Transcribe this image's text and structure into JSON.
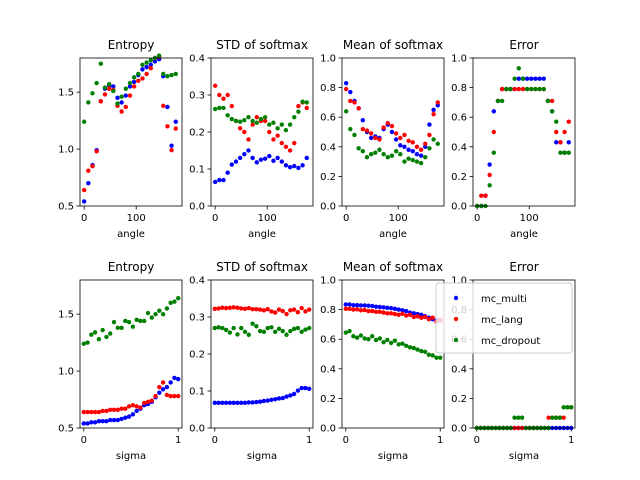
{
  "chart_data": [
    {
      "type": "scatter",
      "title": "Entropy",
      "xlabel": "angle",
      "ylabel": "",
      "xlim": [
        -8,
        188
      ],
      "ylim": [
        0.5,
        1.8
      ],
      "xticks": [
        0,
        100
      ],
      "yticks": [
        0.5,
        1.0,
        1.5
      ],
      "x": [
        0,
        8,
        16,
        24,
        32,
        40,
        48,
        56,
        64,
        72,
        80,
        88,
        96,
        104,
        112,
        120,
        128,
        136,
        144,
        152,
        160,
        168,
        176
      ],
      "series": [
        {
          "name": "mc_multi",
          "color": "#0000ff",
          "values": [
            0.54,
            0.7,
            0.86,
            0.99,
            1.42,
            1.53,
            1.56,
            1.55,
            1.45,
            1.41,
            1.47,
            1.55,
            1.59,
            1.65,
            1.7,
            1.72,
            1.74,
            1.77,
            1.79,
            1.64,
            1.37,
            1.03,
            1.24
          ]
        },
        {
          "name": "mc_lang",
          "color": "#ff0000",
          "values": [
            0.64,
            0.81,
            0.85,
            0.98,
            1.42,
            1.48,
            1.53,
            1.52,
            1.38,
            1.33,
            1.37,
            1.47,
            1.55,
            1.6,
            1.62,
            1.66,
            1.71,
            1.8,
            1.81,
            1.38,
            1.2,
            0.99,
            1.18
          ]
        },
        {
          "name": "mc_dropout",
          "color": "#008000",
          "values": [
            1.24,
            1.41,
            1.49,
            1.58,
            1.75,
            1.54,
            1.57,
            1.51,
            1.4,
            1.46,
            1.53,
            1.58,
            1.63,
            1.66,
            1.74,
            1.76,
            1.78,
            1.8,
            1.82,
            1.66,
            1.64,
            1.65,
            1.66
          ]
        }
      ]
    },
    {
      "type": "scatter",
      "title": "STD of softmax",
      "xlabel": "angle",
      "ylabel": "",
      "xlim": [
        -8,
        188
      ],
      "ylim": [
        0.0,
        0.4
      ],
      "xticks": [
        0,
        100
      ],
      "yticks": [
        0.0,
        0.1,
        0.2,
        0.3,
        0.4
      ],
      "x": [
        0,
        8,
        16,
        24,
        32,
        40,
        48,
        56,
        64,
        72,
        80,
        88,
        96,
        104,
        112,
        120,
        128,
        136,
        144,
        152,
        160,
        168,
        176
      ],
      "series": [
        {
          "name": "mc_multi",
          "color": "#0000ff",
          "values": [
            0.065,
            0.07,
            0.07,
            0.09,
            0.112,
            0.12,
            0.13,
            0.14,
            0.15,
            0.13,
            0.118,
            0.125,
            0.128,
            0.135,
            0.122,
            0.13,
            0.12,
            0.11,
            0.105,
            0.108,
            0.103,
            0.11,
            0.13
          ]
        },
        {
          "name": "mc_lang",
          "color": "#ff0000",
          "values": [
            0.325,
            0.3,
            0.29,
            0.3,
            0.27,
            0.23,
            0.21,
            0.2,
            0.18,
            0.22,
            0.24,
            0.23,
            0.23,
            0.2,
            0.18,
            0.19,
            0.17,
            0.16,
            0.15,
            0.17,
            0.27,
            0.28,
            0.265
          ]
        },
        {
          "name": "mc_dropout",
          "color": "#008000",
          "values": [
            0.262,
            0.265,
            0.265,
            0.245,
            0.235,
            0.23,
            0.228,
            0.232,
            0.24,
            0.23,
            0.225,
            0.235,
            0.24,
            0.22,
            0.225,
            0.21,
            0.22,
            0.205,
            0.22,
            0.24,
            0.255,
            0.282,
            0.28
          ]
        }
      ]
    },
    {
      "type": "scatter",
      "title": "Mean of softmax",
      "xlabel": "angle",
      "ylabel": "",
      "xlim": [
        -8,
        188
      ],
      "ylim": [
        0.0,
        1.0
      ],
      "xticks": [
        0,
        100
      ],
      "yticks": [
        0.0,
        0.2,
        0.4,
        0.6,
        0.8,
        1.0
      ],
      "x": [
        0,
        8,
        16,
        24,
        32,
        40,
        48,
        56,
        64,
        72,
        80,
        88,
        96,
        104,
        112,
        120,
        128,
        136,
        144,
        152,
        160,
        168,
        176
      ],
      "series": [
        {
          "name": "mc_multi",
          "color": "#0000ff",
          "values": [
            0.83,
            0.77,
            0.71,
            0.66,
            0.58,
            0.5,
            0.46,
            0.47,
            0.46,
            0.52,
            0.55,
            0.5,
            0.45,
            0.41,
            0.4,
            0.38,
            0.37,
            0.35,
            0.34,
            0.4,
            0.55,
            0.65,
            0.68
          ]
        },
        {
          "name": "mc_lang",
          "color": "#ff0000",
          "values": [
            0.79,
            0.71,
            0.7,
            0.66,
            0.52,
            0.51,
            0.49,
            0.46,
            0.45,
            0.53,
            0.56,
            0.54,
            0.49,
            0.46,
            0.48,
            0.44,
            0.43,
            0.4,
            0.38,
            0.42,
            0.48,
            0.62,
            0.7
          ]
        },
        {
          "name": "mc_dropout",
          "color": "#008000",
          "values": [
            0.64,
            0.52,
            0.48,
            0.39,
            0.37,
            0.33,
            0.35,
            0.36,
            0.38,
            0.35,
            0.33,
            0.34,
            0.37,
            0.35,
            0.3,
            0.32,
            0.31,
            0.3,
            0.29,
            0.33,
            0.39,
            0.45,
            0.42
          ]
        }
      ]
    },
    {
      "type": "scatter",
      "title": "Error",
      "xlabel": "angle",
      "ylabel": "",
      "xlim": [
        -8,
        188
      ],
      "ylim": [
        0.0,
        1.0
      ],
      "xticks": [
        0,
        100
      ],
      "yticks": [
        0.0,
        0.2,
        0.4,
        0.6,
        0.8,
        1.0
      ],
      "x": [
        0,
        8,
        16,
        24,
        32,
        40,
        48,
        56,
        64,
        72,
        80,
        88,
        96,
        104,
        112,
        120,
        128,
        136,
        144,
        152,
        160,
        168,
        176
      ],
      "series": [
        {
          "name": "mc_multi",
          "color": "#0000ff",
          "values": [
            0.0,
            0.0,
            0.07,
            0.28,
            0.64,
            0.71,
            0.79,
            0.79,
            0.79,
            0.79,
            0.86,
            0.86,
            0.86,
            0.86,
            0.86,
            0.86,
            0.86,
            0.71,
            0.64,
            0.43,
            0.43,
            0.36,
            0.43
          ]
        },
        {
          "name": "mc_lang",
          "color": "#ff0000",
          "values": [
            0.0,
            0.07,
            0.07,
            0.21,
            0.5,
            0.71,
            0.79,
            0.79,
            0.79,
            0.79,
            0.79,
            0.79,
            0.79,
            0.79,
            0.79,
            0.79,
            0.79,
            0.71,
            0.71,
            0.5,
            0.43,
            0.5,
            0.57
          ]
        },
        {
          "name": "mc_dropout",
          "color": "#008000",
          "values": [
            0.0,
            0.0,
            0.0,
            0.14,
            0.36,
            0.71,
            0.71,
            0.79,
            0.79,
            0.86,
            0.93,
            0.86,
            0.79,
            0.79,
            0.79,
            0.79,
            0.79,
            0.71,
            0.64,
            0.57,
            0.36,
            0.36,
            0.36
          ]
        }
      ]
    },
    {
      "type": "scatter",
      "title": "Entropy",
      "xlabel": "sigma",
      "ylabel": "",
      "xlim": [
        -0.04,
        1.04
      ],
      "ylim": [
        0.5,
        1.8
      ],
      "xticks": [
        0,
        1
      ],
      "yticks": [
        0.5,
        1.0,
        1.5
      ],
      "x": [
        0.0,
        0.04,
        0.08,
        0.12,
        0.16,
        0.2,
        0.24,
        0.28,
        0.32,
        0.36,
        0.4,
        0.44,
        0.48,
        0.52,
        0.56,
        0.6,
        0.64,
        0.68,
        0.72,
        0.76,
        0.8,
        0.84,
        0.88,
        0.92,
        0.96,
        1.0
      ],
      "series": [
        {
          "name": "mc_multi",
          "color": "#0000ff",
          "values": [
            0.54,
            0.54,
            0.55,
            0.55,
            0.56,
            0.56,
            0.56,
            0.57,
            0.57,
            0.57,
            0.58,
            0.59,
            0.6,
            0.62,
            0.65,
            0.67,
            0.7,
            0.71,
            0.73,
            0.77,
            0.81,
            0.84,
            0.86,
            0.9,
            0.94,
            0.93
          ]
        },
        {
          "name": "mc_lang",
          "color": "#ff0000",
          "values": [
            0.64,
            0.64,
            0.64,
            0.64,
            0.64,
            0.65,
            0.65,
            0.66,
            0.66,
            0.66,
            0.67,
            0.67,
            0.69,
            0.7,
            0.69,
            0.68,
            0.72,
            0.73,
            0.74,
            0.78,
            0.86,
            0.9,
            0.79,
            0.78,
            0.78,
            0.78
          ]
        },
        {
          "name": "mc_dropout",
          "color": "#008000",
          "values": [
            1.24,
            1.25,
            1.32,
            1.34,
            1.28,
            1.36,
            1.3,
            1.33,
            1.43,
            1.38,
            1.38,
            1.44,
            1.43,
            1.39,
            1.45,
            1.44,
            1.44,
            1.51,
            1.47,
            1.5,
            1.53,
            1.5,
            1.55,
            1.6,
            1.61,
            1.64
          ]
        }
      ]
    },
    {
      "type": "scatter",
      "title": "STD of softmax",
      "xlabel": "sigma",
      "ylabel": "",
      "xlim": [
        -0.04,
        1.04
      ],
      "ylim": [
        0.0,
        0.4
      ],
      "xticks": [
        0,
        1
      ],
      "yticks": [
        0.0,
        0.1,
        0.2,
        0.3,
        0.4
      ],
      "x": [
        0.0,
        0.04,
        0.08,
        0.12,
        0.16,
        0.2,
        0.24,
        0.28,
        0.32,
        0.36,
        0.4,
        0.44,
        0.48,
        0.52,
        0.56,
        0.6,
        0.64,
        0.68,
        0.72,
        0.76,
        0.8,
        0.84,
        0.88,
        0.92,
        0.96,
        1.0
      ],
      "series": [
        {
          "name": "mc_multi",
          "color": "#0000ff",
          "values": [
            0.068,
            0.068,
            0.068,
            0.068,
            0.068,
            0.068,
            0.068,
            0.068,
            0.068,
            0.069,
            0.069,
            0.07,
            0.071,
            0.073,
            0.074,
            0.076,
            0.078,
            0.08,
            0.081,
            0.085,
            0.088,
            0.092,
            0.101,
            0.108,
            0.108,
            0.106
          ]
        },
        {
          "name": "mc_lang",
          "color": "#ff0000",
          "values": [
            0.322,
            0.323,
            0.325,
            0.324,
            0.325,
            0.326,
            0.325,
            0.323,
            0.322,
            0.324,
            0.321,
            0.321,
            0.32,
            0.318,
            0.321,
            0.315,
            0.312,
            0.32,
            0.316,
            0.308,
            0.318,
            0.32,
            0.313,
            0.324,
            0.315,
            0.32
          ]
        },
        {
          "name": "mc_dropout",
          "color": "#008000",
          "values": [
            0.27,
            0.272,
            0.27,
            0.265,
            0.258,
            0.27,
            0.253,
            0.27,
            0.26,
            0.252,
            0.282,
            0.275,
            0.262,
            0.26,
            0.27,
            0.272,
            0.26,
            0.268,
            0.262,
            0.252,
            0.262,
            0.268,
            0.27,
            0.26,
            0.266,
            0.27
          ]
        }
      ]
    },
    {
      "type": "scatter",
      "title": "Mean of softmax",
      "xlabel": "sigma",
      "ylabel": "",
      "xlim": [
        -0.04,
        1.04
      ],
      "ylim": [
        0.0,
        1.0
      ],
      "xticks": [
        0,
        1
      ],
      "yticks": [
        0.0,
        0.2,
        0.4,
        0.6,
        0.8,
        1.0
      ],
      "x": [
        0.0,
        0.04,
        0.08,
        0.12,
        0.16,
        0.2,
        0.24,
        0.28,
        0.32,
        0.36,
        0.4,
        0.44,
        0.48,
        0.52,
        0.56,
        0.6,
        0.64,
        0.68,
        0.72,
        0.76,
        0.8,
        0.84,
        0.88,
        0.92,
        0.96,
        1.0
      ],
      "series": [
        {
          "name": "mc_multi",
          "color": "#0000ff",
          "values": [
            0.835,
            0.835,
            0.83,
            0.83,
            0.828,
            0.828,
            0.826,
            0.824,
            0.82,
            0.818,
            0.815,
            0.812,
            0.81,
            0.805,
            0.8,
            0.795,
            0.79,
            0.78,
            0.775,
            0.77,
            0.765,
            0.755,
            0.745,
            0.735,
            0.73,
            0.725
          ]
        },
        {
          "name": "mc_lang",
          "color": "#ff0000",
          "values": [
            0.805,
            0.805,
            0.8,
            0.802,
            0.795,
            0.797,
            0.79,
            0.79,
            0.785,
            0.785,
            0.78,
            0.775,
            0.775,
            0.77,
            0.765,
            0.772,
            0.76,
            0.765,
            0.75,
            0.755,
            0.745,
            0.75,
            0.735,
            0.745,
            0.72,
            0.73
          ]
        },
        {
          "name": "mc_dropout",
          "color": "#008000",
          "values": [
            0.645,
            0.655,
            0.62,
            0.61,
            0.625,
            0.605,
            0.6,
            0.62,
            0.595,
            0.605,
            0.58,
            0.595,
            0.575,
            0.59,
            0.565,
            0.57,
            0.555,
            0.545,
            0.54,
            0.53,
            0.52,
            0.515,
            0.495,
            0.49,
            0.475,
            0.475
          ]
        }
      ]
    },
    {
      "type": "scatter",
      "title": "Error",
      "xlabel": "sigma",
      "ylabel": "",
      "xlim": [
        -0.04,
        1.04
      ],
      "ylim": [
        0.0,
        1.0
      ],
      "xticks": [
        0,
        1
      ],
      "yticks": [
        0.0,
        0.2,
        0.4,
        0.6,
        0.8,
        1.0
      ],
      "x": [
        0.0,
        0.04,
        0.08,
        0.12,
        0.16,
        0.2,
        0.24,
        0.28,
        0.32,
        0.36,
        0.4,
        0.44,
        0.48,
        0.52,
        0.56,
        0.6,
        0.64,
        0.68,
        0.72,
        0.76,
        0.8,
        0.84,
        0.88,
        0.92,
        0.96,
        1.0
      ],
      "series": [
        {
          "name": "mc_multi",
          "color": "#0000ff",
          "values": [
            0,
            0,
            0,
            0,
            0,
            0,
            0,
            0,
            0,
            0,
            0,
            0,
            0,
            0,
            0,
            0,
            0,
            0,
            0,
            0,
            0,
            0,
            0,
            0,
            0,
            0
          ]
        },
        {
          "name": "mc_lang",
          "color": "#ff0000",
          "values": [
            0,
            0,
            0,
            0,
            0,
            0,
            0,
            0,
            0,
            0,
            0,
            0,
            0,
            0,
            0,
            0,
            0,
            0,
            0,
            0.07,
            0.07,
            0.07,
            0.07,
            0.07,
            0.14,
            0.14
          ]
        },
        {
          "name": "mc_dropout",
          "color": "#008000",
          "values": [
            0,
            0,
            0,
            0,
            0,
            0,
            0,
            0,
            0,
            0,
            0.07,
            0.07,
            0.07,
            0,
            0,
            0,
            0,
            0,
            0,
            0,
            0.07,
            0.07,
            0.07,
            0.14,
            0.14,
            0.14
          ]
        }
      ]
    }
  ],
  "legend": {
    "placement": "inside bottom-right panel, upper-left",
    "entries": [
      {
        "label": "mc_multi",
        "color": "#0000ff"
      },
      {
        "label": "mc_lang",
        "color": "#ff0000"
      },
      {
        "label": "mc_dropout",
        "color": "#008000"
      }
    ]
  }
}
